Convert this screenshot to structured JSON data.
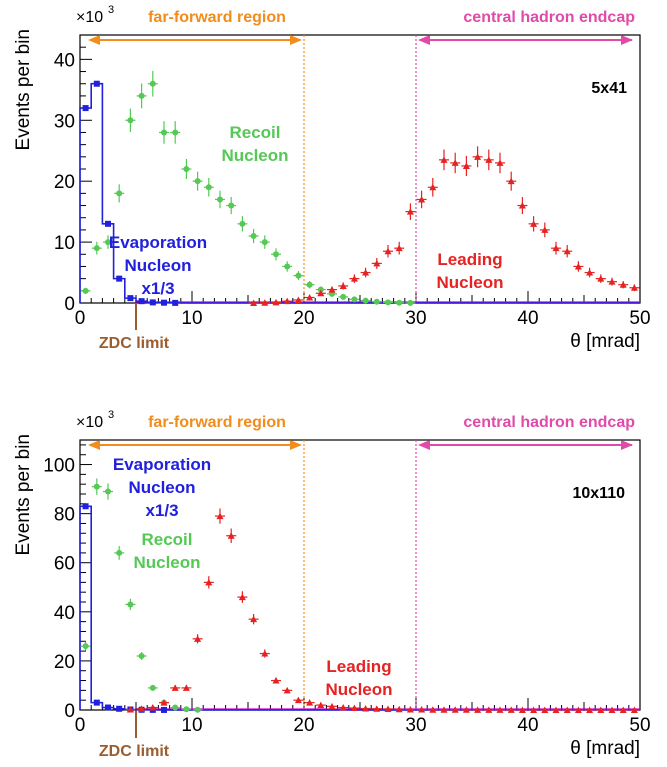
{
  "chart_data": [
    {
      "type": "scatter",
      "energy_label": "5x41",
      "ylabel": "Events per bin",
      "y_multiplier": "×10",
      "y_multiplier_exp": "3",
      "xlabel": "θ [mrad]",
      "xlim": [
        0,
        50
      ],
      "ylim": [
        0,
        44
      ],
      "x_ticks": [
        0,
        10,
        20,
        30,
        40,
        50
      ],
      "y_ticks": [
        0,
        10,
        20,
        30,
        40
      ],
      "region_far_forward": "far-forward region",
      "region_central": "central hadron endcap",
      "zdc_label": "ZDC limit",
      "zdc_x": 5,
      "far_forward_limit": 20,
      "central_start": 30,
      "colors": {
        "evaporation": "#2020dd",
        "recoil": "#55c855",
        "leading": "#e62222",
        "far_forward": "#f28c1c",
        "central": "#e04aa8",
        "zdc": "#9b5c2e",
        "leading_line": "#d000d0"
      },
      "series": [
        {
          "name": "Evaporation Nucleon x1/3",
          "label_lines": [
            "Evaporation",
            "Nucleon",
            "x1/3"
          ],
          "x": [
            0.5,
            1.5,
            2.5,
            3.5,
            4.5,
            5.5,
            6.5,
            7.5,
            8.5
          ],
          "y": [
            32,
            36,
            13,
            4,
            0.8,
            0.3,
            0.1,
            0.05,
            0.02
          ]
        },
        {
          "name": "Recoil Nucleon",
          "label_lines": [
            "Recoil",
            "Nucleon"
          ],
          "x": [
            0.5,
            1.5,
            2.5,
            3.5,
            4.5,
            5.5,
            6.5,
            7.5,
            8.5,
            9.5,
            10.5,
            11.5,
            12.5,
            13.5,
            14.5,
            15.5,
            16.5,
            17.5,
            18.5,
            19.5,
            20.5,
            21.5,
            22.5,
            23.5,
            24.5,
            25.5,
            26.5,
            27.5,
            28.5,
            29.5
          ],
          "y": [
            2,
            9,
            10,
            18,
            30,
            34,
            36,
            28,
            28,
            22,
            20,
            19,
            17,
            16,
            13,
            11,
            10,
            8,
            6,
            4.5,
            3,
            2.2,
            1.5,
            1,
            0.6,
            0.4,
            0.2,
            0.1,
            0.05,
            0.02
          ]
        },
        {
          "name": "Leading Nucleon",
          "label_lines": [
            "Leading",
            "Nucleon"
          ],
          "x": [
            15.5,
            16.5,
            17.5,
            18.5,
            19.5,
            20.5,
            21.5,
            22.5,
            23.5,
            24.5,
            25.5,
            26.5,
            27.5,
            28.5,
            29.5,
            30.5,
            31.5,
            32.5,
            33.5,
            34.5,
            35.5,
            36.5,
            37.5,
            38.5,
            39.5,
            40.5,
            41.5,
            42.5,
            43.5,
            44.5,
            45.5,
            46.5,
            47.5,
            48.5,
            49.5
          ],
          "y": [
            0,
            0.05,
            0.1,
            0.3,
            0.5,
            0.9,
            1.6,
            2.2,
            2.8,
            4,
            5,
            6.5,
            8.5,
            9,
            15,
            17,
            19,
            23.5,
            23,
            22.5,
            24,
            23.5,
            23,
            20,
            16,
            13,
            12,
            9,
            8.5,
            6,
            5,
            4,
            3.5,
            3,
            2.5
          ]
        }
      ]
    },
    {
      "type": "scatter",
      "energy_label": "10x110",
      "ylabel": "Events per bin",
      "y_multiplier": "×10",
      "y_multiplier_exp": "3",
      "xlabel": "θ [mrad]",
      "xlim": [
        0,
        50
      ],
      "ylim": [
        0,
        110
      ],
      "x_ticks": [
        0,
        10,
        20,
        30,
        40,
        50
      ],
      "y_ticks": [
        0,
        20,
        40,
        60,
        80,
        100
      ],
      "region_far_forward": "far-forward region",
      "region_central": "central hadron endcap",
      "zdc_label": "ZDC limit",
      "zdc_x": 5,
      "far_forward_limit": 20,
      "central_start": 30,
      "colors": {
        "evaporation": "#2020dd",
        "recoil": "#55c855",
        "leading": "#e62222",
        "far_forward": "#f28c1c",
        "central": "#e04aa8",
        "zdc": "#9b5c2e",
        "leading_line": "#d000d0"
      },
      "series": [
        {
          "name": "Evaporation Nucleon x1/3",
          "label_lines": [
            "Evaporation",
            "Nucleon",
            "x1/3"
          ],
          "x": [
            0.5,
            1.5,
            2.5,
            3.5,
            4.5,
            5.5,
            6.5,
            7.5
          ],
          "y": [
            83,
            3,
            1,
            0.5,
            0.2,
            0.1,
            0.05,
            0.02
          ]
        },
        {
          "name": "Recoil Nucleon",
          "label_lines": [
            "Recoil",
            "Nucleon"
          ],
          "x": [
            0.5,
            1.5,
            2.5,
            3.5,
            4.5,
            5.5,
            6.5,
            7.5,
            8.5,
            9.5,
            10.5
          ],
          "y": [
            26,
            91,
            89,
            64,
            43,
            22,
            9,
            3,
            1,
            0.3,
            0.1
          ]
        },
        {
          "name": "Leading Nucleon",
          "label_lines": [
            "Leading",
            "Nucleon"
          ],
          "x": [
            4.5,
            5.5,
            6.5,
            7.5,
            8.5,
            9.5,
            10.5,
            11.5,
            12.5,
            13.5,
            14.5,
            15.5,
            16.5,
            17.5,
            18.5,
            19.5,
            20.5,
            21.5,
            22.5,
            23.5,
            24.5,
            25.5,
            26.5,
            27.5,
            28.5,
            29.5,
            30.5,
            31.5,
            32.5,
            33.5,
            34.5,
            35.5,
            36.5,
            37.5,
            38.5,
            39.5,
            40.5,
            41.5,
            42.5,
            43.5,
            44.5,
            45.5,
            46.5,
            47.5,
            48.5,
            49.5
          ],
          "y": [
            0.2,
            0.5,
            1,
            3,
            9,
            9,
            29,
            52,
            79,
            71,
            46,
            37,
            23,
            12,
            8,
            4,
            3,
            2,
            1.5,
            1,
            0.8,
            0.6,
            0.5,
            0.4,
            0.3,
            0.2,
            0.2,
            0.1,
            0.1,
            0.1,
            0.1,
            0.05,
            0.05,
            0.05,
            0.05,
            0.02,
            0.02,
            0.02,
            0.02,
            0.02,
            0.02,
            0.02,
            0.02,
            0.02,
            0.02,
            0.02
          ]
        }
      ]
    }
  ]
}
